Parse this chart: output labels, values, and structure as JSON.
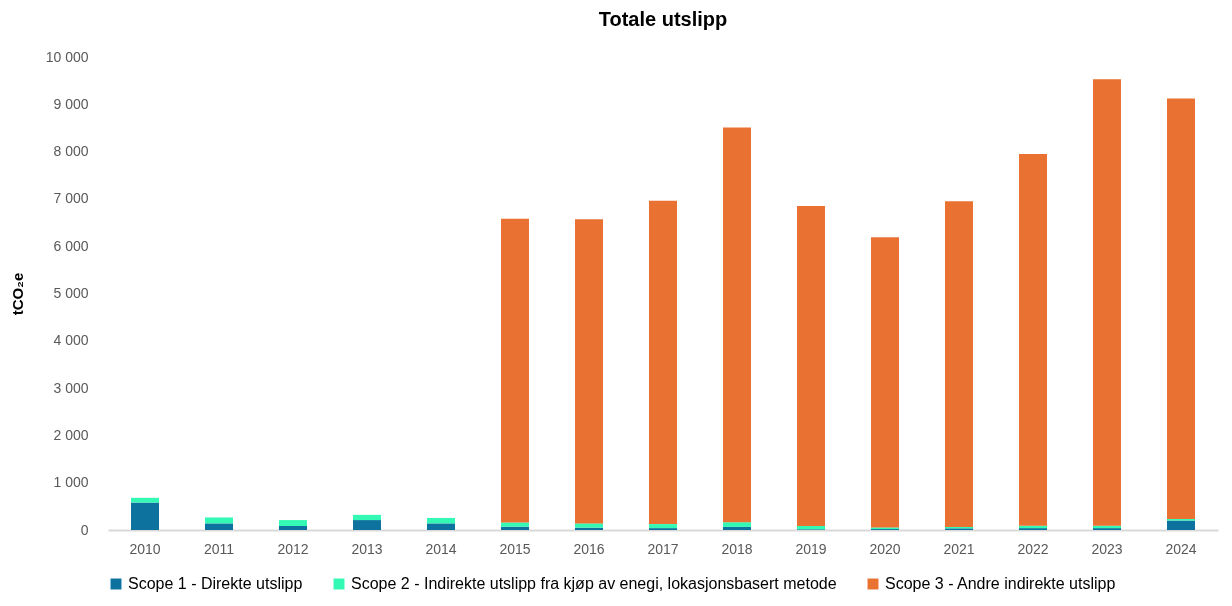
{
  "chart_data": {
    "type": "bar",
    "title": "Totale utslipp",
    "ylabel": "tCO₂e",
    "stacked": true,
    "legend": "bottom",
    "grid": false,
    "categories": [
      "2010",
      "2011",
      "2012",
      "2013",
      "2014",
      "2015",
      "2016",
      "2017",
      "2018",
      "2019",
      "2020",
      "2021",
      "2022",
      "2023",
      "2024"
    ],
    "ylim": [
      0,
      10000
    ],
    "yticks": [
      {
        "value": 0,
        "label": "0"
      },
      {
        "value": 1000,
        "label": "1 000"
      },
      {
        "value": 2000,
        "label": "2 000"
      },
      {
        "value": 3000,
        "label": "3 000"
      },
      {
        "value": 4000,
        "label": "4 000"
      },
      {
        "value": 5000,
        "label": "5 000"
      },
      {
        "value": 6000,
        "label": "6 000"
      },
      {
        "value": 7000,
        "label": "7 000"
      },
      {
        "value": 8000,
        "label": "8 000"
      },
      {
        "value": 9000,
        "label": "9 000"
      },
      {
        "value": 10000,
        "label": "10 000"
      }
    ],
    "series": [
      {
        "name": "Scope 1 - Direkte utslipp",
        "color": "#0e729e",
        "values": [
          580,
          140,
          85,
          210,
          140,
          70,
          50,
          40,
          65,
          15,
          20,
          35,
          40,
          40,
          200
        ]
      },
      {
        "name": "Scope 2 - Indirekte utslipp fra kjøp av enegi, lokasjonsbasert metode",
        "color": "#33f9b4",
        "values": [
          100,
          125,
          125,
          110,
          115,
          90,
          90,
          85,
          100,
          70,
          35,
          30,
          50,
          50,
          35
        ]
      },
      {
        "name": "Scope 3 - Andre indirekte utslipp",
        "color": "#e97132",
        "values": [
          0,
          0,
          0,
          0,
          0,
          6420,
          6430,
          6835,
          8345,
          6765,
          6135,
          6885,
          7860,
          9440,
          8885
        ]
      }
    ]
  }
}
